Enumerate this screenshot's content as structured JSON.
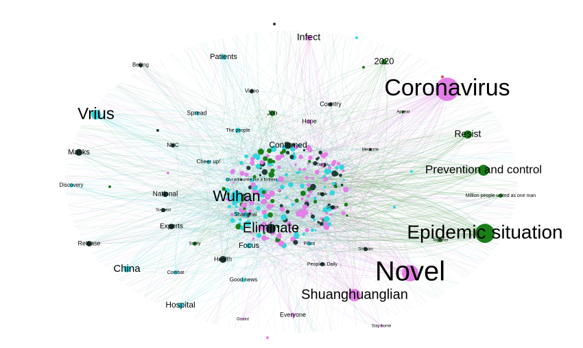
{
  "nodes": [
    {
      "label": "Infect"
    },
    {
      "label": "2020"
    },
    {
      "label": "Coronavirus"
    },
    {
      "label": "Patients"
    },
    {
      "label": "Beijing"
    },
    {
      "label": "Video"
    },
    {
      "label": "Country"
    },
    {
      "label": "Vrius"
    },
    {
      "label": "Spread"
    },
    {
      "label": "Job"
    },
    {
      "label": "Hope"
    },
    {
      "label": "Appear"
    },
    {
      "label": "The people"
    },
    {
      "label": "Resist"
    },
    {
      "label": "Masks"
    },
    {
      "label": "NHC"
    },
    {
      "label": "Confirmed"
    },
    {
      "label": "Medicine"
    },
    {
      "label": "Cheer up!"
    },
    {
      "label": "Tianjin"
    },
    {
      "label": "Prevention and control"
    },
    {
      "label": "Our wills unite like a fortress"
    },
    {
      "label": "Discovery"
    },
    {
      "label": "Million people united as one man"
    },
    {
      "label": "National"
    },
    {
      "label": "Wuhan"
    },
    {
      "label": "Mask"
    },
    {
      "label": "Doctor"
    },
    {
      "label": "Suggest"
    },
    {
      "label": "Shanghai"
    },
    {
      "label": "Eliminate"
    },
    {
      "label": "Experts"
    },
    {
      "label": "Epidemic situation"
    },
    {
      "label": "Together"
    },
    {
      "label": "Release"
    },
    {
      "label": "Focus"
    },
    {
      "label": "Front"
    },
    {
      "label": "Sichuan"
    },
    {
      "label": "Safety"
    },
    {
      "label": "Health"
    },
    {
      "label": "People's Daily"
    },
    {
      "label": "China"
    },
    {
      "label": "Novel"
    },
    {
      "label": "Combat"
    },
    {
      "label": "Good news"
    },
    {
      "label": "Shuanghuanglian"
    },
    {
      "label": "Hospital"
    },
    {
      "label": "Everyone"
    },
    {
      "label": "Go out"
    },
    {
      "label": "Stay home"
    }
  ]
}
